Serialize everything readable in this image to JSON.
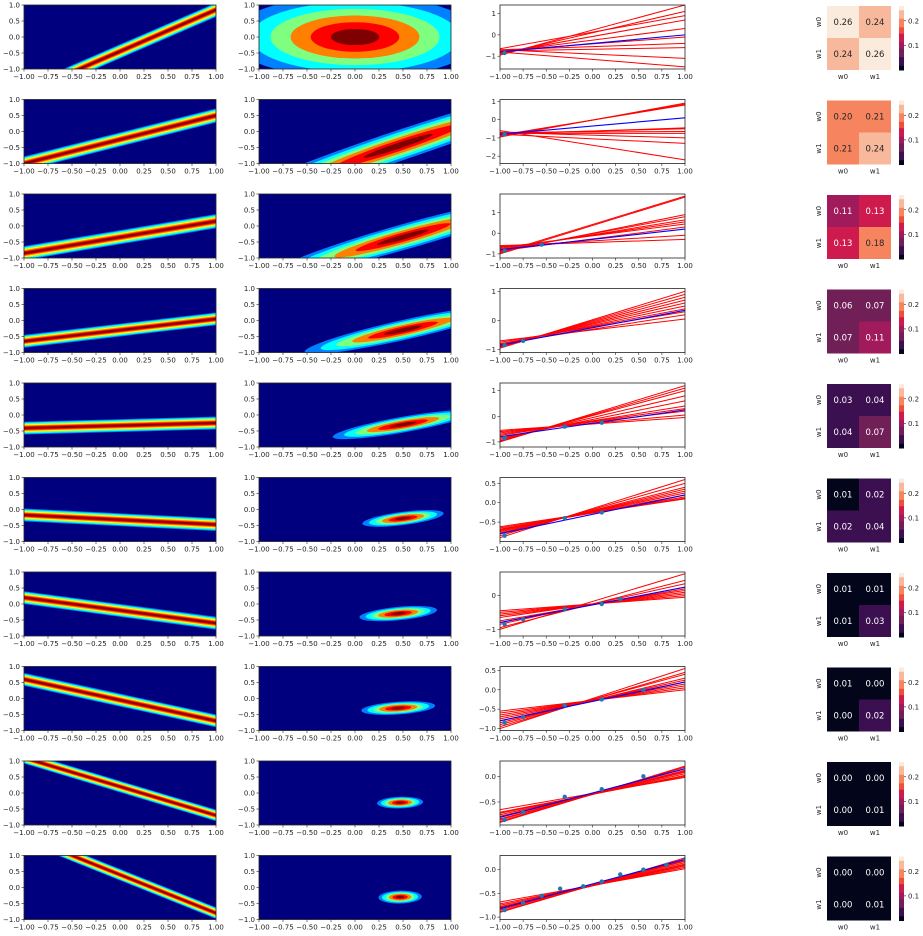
{
  "figure": {
    "colors": {
      "jet": [
        "#00007f",
        "#0000ff",
        "#007fff",
        "#00ffff",
        "#7fff7f",
        "#ffff00",
        "#ff7f00",
        "#ff0000",
        "#7f0000"
      ],
      "sample_line": "#ff0000",
      "true_line": "#0000ff",
      "data_point": "#1f77b4",
      "heatmap_cmap": [
        "#03051a",
        "#3b0f50",
        "#701f57",
        "#a11a5b",
        "#cf1a4d",
        "#ef4e3a",
        "#f6855f",
        "#f7b89c",
        "#faebdd"
      ]
    }
  },
  "chart_data": [
    {
      "type": "heatmap",
      "description_role": "likelihood",
      "x_ticks": [
        "−1.00",
        "−0.75",
        "−0.50",
        "−0.25",
        "0.00",
        "0.25",
        "0.50",
        "0.75",
        "1.00"
      ],
      "y_ticks": [
        "1.0",
        "0.5",
        "0.0",
        "−0.5",
        "−1.0"
      ],
      "xlim": [
        -1,
        1
      ],
      "ylim": [
        -1,
        1
      ],
      "rows": [
        {
          "slope": 1.3,
          "offset": -0.45,
          "width": 0.22
        },
        {
          "slope": 0.75,
          "offset": -0.25,
          "width": 0.22
        },
        {
          "slope": 0.5,
          "offset": -0.35,
          "width": 0.22
        },
        {
          "slope": 0.35,
          "offset": -0.3,
          "width": 0.2
        },
        {
          "slope": 0.08,
          "offset": -0.33,
          "width": 0.2
        },
        {
          "slope": -0.15,
          "offset": -0.32,
          "width": 0.2
        },
        {
          "slope": -0.4,
          "offset": -0.2,
          "width": 0.2
        },
        {
          "slope": -0.65,
          "offset": -0.05,
          "width": 0.2
        },
        {
          "slope": -0.9,
          "offset": 0.2,
          "width": 0.18
        },
        {
          "slope": -1.2,
          "offset": 0.4,
          "width": 0.18
        }
      ]
    },
    {
      "type": "heatmap",
      "description_role": "posterior",
      "x_ticks": [
        "−1.00",
        "−0.75",
        "−0.50",
        "−0.25",
        "0.00",
        "0.25",
        "0.50",
        "0.75",
        "1.00"
      ],
      "y_ticks": [
        "1.0",
        "0.5",
        "0.0",
        "−0.5",
        "−1.0"
      ],
      "xlim": [
        -1,
        1
      ],
      "ylim": [
        -1,
        1
      ],
      "rows": [
        {
          "cx": 0.0,
          "cy": 0.0,
          "sx": 0.5,
          "sy": 0.5,
          "rho": 0.0
        },
        {
          "cx": 0.45,
          "cy": -0.45,
          "sx": 0.45,
          "sy": 0.5,
          "rho": 0.85
        },
        {
          "cx": 0.5,
          "cy": -0.35,
          "sx": 0.33,
          "sy": 0.42,
          "rho": 0.85
        },
        {
          "cx": 0.5,
          "cy": -0.3,
          "sx": 0.24,
          "sy": 0.33,
          "rho": 0.85
        },
        {
          "cx": 0.5,
          "cy": -0.3,
          "sx": 0.17,
          "sy": 0.26,
          "rho": 0.85
        },
        {
          "cx": 0.5,
          "cy": -0.28,
          "sx": 0.1,
          "sy": 0.2,
          "rho": 0.8
        },
        {
          "cx": 0.45,
          "cy": -0.3,
          "sx": 0.1,
          "sy": 0.17,
          "rho": 0.7
        },
        {
          "cx": 0.45,
          "cy": -0.3,
          "sx": 0.1,
          "sy": 0.14,
          "rho": 0.6
        },
        {
          "cx": 0.47,
          "cy": -0.3,
          "sx": 0.07,
          "sy": 0.1,
          "rho": 0.4
        },
        {
          "cx": 0.47,
          "cy": -0.3,
          "sx": 0.07,
          "sy": 0.1,
          "rho": 0.3
        }
      ]
    },
    {
      "type": "line",
      "description_role": "sampled regression lines and data",
      "x_ticks": [
        "−1.00",
        "−0.75",
        "−0.50",
        "−0.25",
        "0.00",
        "0.25",
        "0.50",
        "0.75",
        "1.00"
      ],
      "xlim": [
        -1,
        1
      ],
      "rows": [
        {
          "ylim": [
            -1.6,
            1.4
          ],
          "y_ticks": [
            "1",
            "0",
            "−1"
          ],
          "true": [
            -0.8,
            0.0
          ],
          "samples": [
            [
              -0.95,
              1.4
            ],
            [
              -0.9,
              1.1
            ],
            [
              -0.85,
              0.7
            ],
            [
              -0.8,
              0.3
            ],
            [
              -0.75,
              -0.1
            ],
            [
              -0.7,
              -0.4
            ],
            [
              -0.75,
              -0.6
            ],
            [
              -0.7,
              -1.1
            ],
            [
              -0.8,
              -1.5
            ],
            [
              -0.65,
              0.9
            ]
          ],
          "points": [
            [
              -0.95,
              -0.85
            ]
          ]
        },
        {
          "ylim": [
            -2.4,
            1.1
          ],
          "y_ticks": [
            "1",
            "0",
            "−1",
            "−2"
          ],
          "true": [
            -0.8,
            0.1
          ],
          "samples": [
            [
              -0.95,
              0.9
            ],
            [
              -0.9,
              0.85
            ],
            [
              -0.85,
              0.8
            ],
            [
              -0.8,
              -0.45
            ],
            [
              -0.75,
              -0.5
            ],
            [
              -0.7,
              -0.65
            ],
            [
              -0.75,
              -0.75
            ],
            [
              -0.7,
              -1.0
            ],
            [
              -0.8,
              -1.3
            ],
            [
              -0.6,
              -2.2
            ]
          ],
          "points": [
            [
              -0.95,
              -0.8
            ]
          ]
        },
        {
          "ylim": [
            -1.2,
            1.9
          ],
          "y_ticks": [
            "1",
            "0",
            "−1"
          ],
          "true": [
            -0.8,
            0.2
          ],
          "samples": [
            [
              -0.95,
              1.8
            ],
            [
              -1.0,
              1.75
            ],
            [
              -0.9,
              0.9
            ],
            [
              -0.85,
              0.8
            ],
            [
              -0.8,
              0.65
            ],
            [
              -0.75,
              0.55
            ],
            [
              -0.7,
              0.45
            ],
            [
              -0.85,
              0.3
            ],
            [
              -0.65,
              -0.1
            ],
            [
              -0.6,
              -0.3
            ]
          ],
          "points": [
            [
              -0.95,
              -0.85
            ],
            [
              -0.55,
              -0.55
            ]
          ]
        },
        {
          "ylim": [
            -1.1,
            1.1
          ],
          "y_ticks": [
            "1",
            "0",
            "−1"
          ],
          "true": [
            -0.85,
            0.35
          ],
          "samples": [
            [
              -0.95,
              1.0
            ],
            [
              -0.92,
              0.9
            ],
            [
              -0.9,
              0.8
            ],
            [
              -0.88,
              0.7
            ],
            [
              -0.85,
              0.6
            ],
            [
              -0.83,
              0.5
            ],
            [
              -0.8,
              0.4
            ],
            [
              -0.75,
              0.3
            ],
            [
              -0.8,
              0.2
            ],
            [
              -0.7,
              0.05
            ]
          ],
          "points": [
            [
              -0.95,
              -0.85
            ],
            [
              -0.75,
              -0.7
            ]
          ]
        },
        {
          "ylim": [
            -1.2,
            1.3
          ],
          "y_ticks": [
            "1",
            "0",
            "−1"
          ],
          "true": [
            -0.8,
            0.25
          ],
          "samples": [
            [
              -1.0,
              1.2
            ],
            [
              -0.98,
              1.1
            ],
            [
              -0.95,
              1.0
            ],
            [
              -0.9,
              0.8
            ],
            [
              -0.85,
              0.6
            ],
            [
              -0.75,
              0.4
            ],
            [
              -0.7,
              0.3
            ],
            [
              -0.65,
              0.2
            ],
            [
              -0.6,
              0.05
            ],
            [
              -0.55,
              -0.05
            ]
          ],
          "points": [
            [
              -0.95,
              -0.85
            ],
            [
              -0.3,
              -0.4
            ],
            [
              0.1,
              -0.25
            ]
          ]
        },
        {
          "ylim": [
            -1.0,
            0.65
          ],
          "y_ticks": [
            "0.5",
            "0.0",
            "−0.5"
          ],
          "true": [
            -0.8,
            0.2
          ],
          "samples": [
            [
              -0.9,
              0.6
            ],
            [
              -0.85,
              0.5
            ],
            [
              -0.8,
              0.4
            ],
            [
              -0.78,
              0.35
            ],
            [
              -0.75,
              0.3
            ],
            [
              -0.72,
              0.25
            ],
            [
              -0.7,
              0.2
            ],
            [
              -0.68,
              0.15
            ],
            [
              -0.65,
              0.12
            ],
            [
              -0.62,
              0.1
            ]
          ],
          "points": [
            [
              -0.95,
              -0.85
            ],
            [
              -0.3,
              -0.4
            ],
            [
              0.1,
              -0.25
            ]
          ]
        },
        {
          "ylim": [
            -1.2,
            0.7
          ],
          "y_ticks": [
            "0",
            "−1"
          ],
          "true": [
            -0.8,
            0.25
          ],
          "samples": [
            [
              -1.0,
              0.65
            ],
            [
              -0.95,
              0.45
            ],
            [
              -0.85,
              0.35
            ],
            [
              -0.8,
              0.25
            ],
            [
              -0.75,
              0.2
            ],
            [
              -0.65,
              0.15
            ],
            [
              -0.6,
              0.1
            ],
            [
              -0.55,
              0.05
            ],
            [
              -0.5,
              0.0
            ],
            [
              -0.45,
              -0.05
            ]
          ],
          "points": [
            [
              -0.95,
              -0.85
            ],
            [
              -0.75,
              -0.7
            ],
            [
              -0.3,
              -0.4
            ],
            [
              0.1,
              -0.25
            ],
            [
              0.3,
              -0.1
            ]
          ]
        },
        {
          "ylim": [
            -1.05,
            0.6
          ],
          "y_ticks": [
            "0.5",
            "0.0",
            "−0.5",
            "−1.0"
          ],
          "true": [
            -0.8,
            0.2
          ],
          "samples": [
            [
              -1.0,
              0.55
            ],
            [
              -0.95,
              0.45
            ],
            [
              -0.9,
              0.4
            ],
            [
              -0.85,
              0.3
            ],
            [
              -0.8,
              0.25
            ],
            [
              -0.75,
              0.2
            ],
            [
              -0.7,
              0.15
            ],
            [
              -0.65,
              0.1
            ],
            [
              -0.6,
              0.05
            ],
            [
              -0.55,
              0.0
            ]
          ],
          "points": [
            [
              -0.95,
              -0.85
            ],
            [
              -0.75,
              -0.7
            ],
            [
              -0.3,
              -0.4
            ],
            [
              0.1,
              -0.25
            ],
            [
              0.55,
              0.0
            ]
          ]
        },
        {
          "ylim": [
            -0.95,
            0.3
          ],
          "y_ticks": [
            "0.0",
            "−0.5"
          ],
          "true": [
            -0.8,
            0.15
          ],
          "samples": [
            [
              -0.9,
              0.2
            ],
            [
              -0.88,
              0.18
            ],
            [
              -0.85,
              0.15
            ],
            [
              -0.83,
              0.12
            ],
            [
              -0.8,
              0.1
            ],
            [
              -0.78,
              0.08
            ],
            [
              -0.75,
              0.05
            ],
            [
              -0.72,
              0.02
            ],
            [
              -0.7,
              0.0
            ],
            [
              -0.65,
              -0.02
            ]
          ],
          "points": [
            [
              -0.95,
              -0.85
            ],
            [
              -0.75,
              -0.7
            ],
            [
              -0.3,
              -0.4
            ],
            [
              0.1,
              -0.25
            ],
            [
              0.55,
              0.0
            ]
          ]
        },
        {
          "ylim": [
            -1.05,
            0.3
          ],
          "y_ticks": [
            "0.0",
            "−0.5",
            "−1.0"
          ],
          "true": [
            -0.82,
            0.22
          ],
          "samples": [
            [
              -0.9,
              0.25
            ],
            [
              -0.88,
              0.22
            ],
            [
              -0.85,
              0.2
            ],
            [
              -0.83,
              0.18
            ],
            [
              -0.82,
              0.15
            ],
            [
              -0.8,
              0.12
            ],
            [
              -0.78,
              0.1
            ],
            [
              -0.75,
              0.08
            ],
            [
              -0.72,
              0.05
            ],
            [
              -0.68,
              0.02
            ]
          ],
          "points": [
            [
              -0.95,
              -0.85
            ],
            [
              -0.75,
              -0.7
            ],
            [
              -0.55,
              -0.55
            ],
            [
              -0.35,
              -0.4
            ],
            [
              -0.1,
              -0.35
            ],
            [
              0.1,
              -0.25
            ],
            [
              0.3,
              -0.1
            ],
            [
              0.55,
              0.0
            ],
            [
              0.8,
              0.1
            ],
            [
              1.0,
              0.22
            ]
          ]
        }
      ]
    },
    {
      "type": "heatmap",
      "description_role": "posterior covariance",
      "row_labels": [
        "w0",
        "w1"
      ],
      "col_labels": [
        "w0",
        "w1"
      ],
      "colorbar_ticks": [
        "0.2",
        "0.1"
      ],
      "vmin": 0.0,
      "vmax": 0.26,
      "matrices": [
        [
          [
            "0.26",
            "0.24"
          ],
          [
            "0.24",
            "0.26"
          ]
        ],
        [
          [
            "0.20",
            "0.21"
          ],
          [
            "0.21",
            "0.24"
          ]
        ],
        [
          [
            "0.11",
            "0.13"
          ],
          [
            "0.13",
            "0.18"
          ]
        ],
        [
          [
            "0.06",
            "0.07"
          ],
          [
            "0.07",
            "0.11"
          ]
        ],
        [
          [
            "0.03",
            "0.04"
          ],
          [
            "0.04",
            "0.07"
          ]
        ],
        [
          [
            "0.01",
            "0.02"
          ],
          [
            "0.02",
            "0.04"
          ]
        ],
        [
          [
            "0.01",
            "0.01"
          ],
          [
            "0.01",
            "0.03"
          ]
        ],
        [
          [
            "0.01",
            "0.00"
          ],
          [
            "0.00",
            "0.02"
          ]
        ],
        [
          [
            "0.00",
            "0.00"
          ],
          [
            "0.00",
            "0.01"
          ]
        ],
        [
          [
            "0.00",
            "0.00"
          ],
          [
            "0.00",
            "0.01"
          ]
        ]
      ]
    }
  ]
}
